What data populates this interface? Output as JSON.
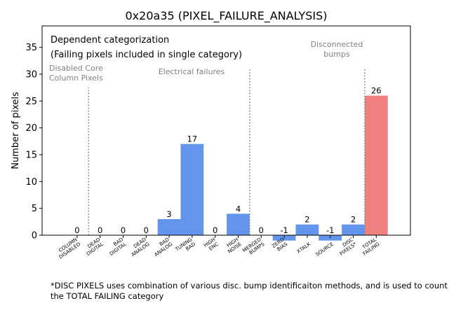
{
  "chart_data": {
    "type": "bar",
    "title": "0x20a35 (PIXEL_FAILURE_ANALYSIS)",
    "xlabel": "",
    "ylabel": "Number of pixels",
    "ylim": [
      0,
      39
    ],
    "yticks": [
      0,
      5,
      10,
      15,
      20,
      25,
      30,
      35
    ],
    "categories": [
      "COLUMN\nDISABLED",
      "DEAD\nDIGITAL",
      "BAD\nDIGITAL",
      "DEAD\nANALOG",
      "BAD\nANALOG",
      "TUNING\nBAD",
      "HIGH\nENC",
      "HIGH\nNOISE",
      "MERGED\nBUMPS",
      "ZERO\nBIAS",
      "XTALK",
      "SOURCE",
      "DISC\nPIXELS*",
      "TOTAL\nFAILING"
    ],
    "values": [
      0,
      0,
      0,
      0,
      3,
      17,
      0,
      4,
      0,
      -1,
      2,
      -1,
      2,
      26
    ],
    "value_labels": [
      "0",
      "0",
      "0",
      "0",
      "3",
      "17",
      "0",
      "4",
      "0",
      "-1",
      "2",
      "-1",
      "2",
      "26"
    ],
    "bar_colors": [
      "#6495ed",
      "#6495ed",
      "#6495ed",
      "#6495ed",
      "#6495ed",
      "#6495ed",
      "#6495ed",
      "#6495ed",
      "#6495ed",
      "#6495ed",
      "#6495ed",
      "#6495ed",
      "#6495ed",
      "#f08080"
    ],
    "separators": [
      {
        "after_category": 0,
        "top_value": 27.5
      },
      {
        "after_category": 7,
        "top_value": 31.2
      },
      {
        "after_category": 12,
        "top_value": 31.2
      }
    ],
    "annotations": [
      {
        "id": "dependent",
        "text": "Dependent categorization",
        "color": "#000000"
      },
      {
        "id": "failing-note",
        "text": "(Failing pixels included in single category)",
        "color": "#000000"
      },
      {
        "id": "disabled-core",
        "text": "Disabled Core\nColumn Pixels",
        "color": "#808080"
      },
      {
        "id": "electrical",
        "text": "Electrical failures",
        "color": "#808080"
      },
      {
        "id": "disconnected",
        "text": "Disconnected\nbumps",
        "color": "#808080"
      }
    ],
    "grid": false
  },
  "footnote": "*DISC PIXELS uses combination of various disc. bump identificaiton methods, and is used to count the TOTAL FAILING category"
}
